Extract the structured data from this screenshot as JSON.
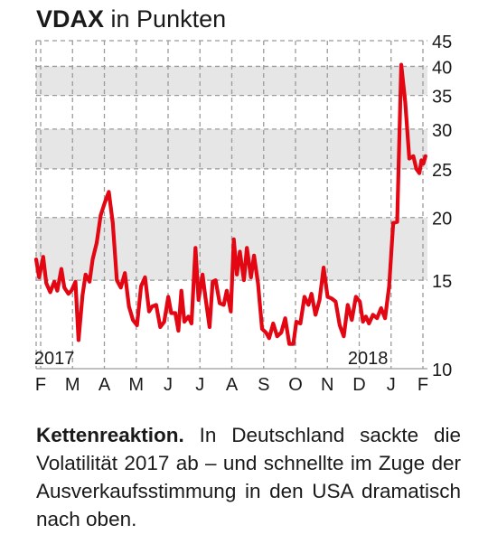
{
  "header": {
    "title_bold": "VDAX",
    "title_rest": "in Punkten"
  },
  "caption": {
    "lead": "Kettenreaktion.",
    "text": "In Deutschland sackte die Volatilität 2017 ab – und schnellte im Zuge der Ausverkaufsstimmung in den USA dramatisch nach oben."
  },
  "colors": {
    "line": "#e30613",
    "band": "#e6e6e6",
    "grid": "#9a9a9a",
    "text": "#1a1a1a"
  },
  "chart_data": {
    "type": "line",
    "title": "VDAX in Punkten",
    "y_scale": "log",
    "ylim": [
      10,
      45
    ],
    "y_ticks": [
      10,
      15,
      20,
      25,
      30,
      35,
      40,
      45
    ],
    "y_tick_labels": [
      "10",
      "15",
      "20",
      "25",
      "30",
      "35",
      "40",
      "45"
    ],
    "shaded_bands": [
      [
        15,
        20
      ],
      [
        25,
        30
      ],
      [
        35,
        40
      ]
    ],
    "grid": true,
    "x_tick_labels": [
      "F",
      "M",
      "A",
      "M",
      "J",
      "J",
      "A",
      "S",
      "O",
      "N",
      "D",
      "J",
      "F"
    ],
    "year_labels": [
      {
        "text": "2017",
        "at": "2017-02-07"
      },
      {
        "text": "2018",
        "at": "2017-12-15"
      }
    ],
    "xlim": [
      "2017-01-20",
      "2018-02-12"
    ],
    "series": [
      {
        "x": [
          "2017-01-20",
          "2017-01-23",
          "2017-01-27",
          "2017-01-30",
          "2017-02-03",
          "2017-02-07",
          "2017-02-10",
          "2017-02-14",
          "2017-02-17",
          "2017-02-21",
          "2017-02-24",
          "2017-02-28",
          "2017-03-03",
          "2017-03-07",
          "2017-03-10",
          "2017-03-14",
          "2017-03-17",
          "2017-03-21",
          "2017-03-25",
          "2017-03-29",
          "2017-04-02",
          "2017-04-06",
          "2017-04-10",
          "2017-04-14",
          "2017-04-18",
          "2017-04-22",
          "2017-04-26",
          "2017-04-30",
          "2017-05-04",
          "2017-05-08",
          "2017-05-12",
          "2017-05-15",
          "2017-05-19",
          "2017-05-23",
          "2017-05-27",
          "2017-05-31",
          "2017-06-03",
          "2017-06-07",
          "2017-06-10",
          "2017-06-13",
          "2017-06-16",
          "2017-06-20",
          "2017-06-23",
          "2017-06-27",
          "2017-06-30",
          "2017-07-04",
          "2017-07-07",
          "2017-07-11",
          "2017-07-14",
          "2017-07-17",
          "2017-07-21",
          "2017-07-25",
          "2017-07-28",
          "2017-08-01",
          "2017-08-04",
          "2017-08-07",
          "2017-08-10",
          "2017-08-14",
          "2017-08-17",
          "2017-08-21",
          "2017-08-24",
          "2017-08-28",
          "2017-09-01",
          "2017-09-05",
          "2017-09-08",
          "2017-09-12",
          "2017-09-16",
          "2017-09-20",
          "2017-09-24",
          "2017-09-28",
          "2017-10-02",
          "2017-10-05",
          "2017-10-09",
          "2017-10-13",
          "2017-10-17",
          "2017-10-20",
          "2017-10-24",
          "2017-10-28",
          "2017-11-01",
          "2017-11-05",
          "2017-11-09",
          "2017-11-13",
          "2017-11-17",
          "2017-11-21",
          "2017-11-25",
          "2017-11-29",
          "2017-12-03",
          "2017-12-07",
          "2017-12-10",
          "2017-12-13",
          "2017-12-16",
          "2017-12-20",
          "2017-12-24",
          "2017-12-28",
          "2018-01-01",
          "2018-01-05",
          "2018-01-09",
          "2018-01-13",
          "2018-01-17",
          "2018-01-21",
          "2018-01-25",
          "2018-01-29",
          "2018-02-01",
          "2018-02-04",
          "2018-02-06",
          "2018-02-08",
          "2018-02-10"
        ],
        "values": [
          16.5,
          15.2,
          16.7,
          14.8,
          14.2,
          14.9,
          14.3,
          15.8,
          14.5,
          14.1,
          14.3,
          14.9,
          11.4,
          14.0,
          15.4,
          14.9,
          16.5,
          17.8,
          20.2,
          21.4,
          22.5,
          19.5,
          15.0,
          14.5,
          15.5,
          13.3,
          12.5,
          12.2,
          14.6,
          15.2,
          13.0,
          13.3,
          13.4,
          12.1,
          12.4,
          13.9,
          12.9,
          12.9,
          11.9,
          14.3,
          12.4,
          12.7,
          12.3,
          17.4,
          13.7,
          15.4,
          13.8,
          12.1,
          14.9,
          15.0,
          13.5,
          13.4,
          14.3,
          13.0,
          18.1,
          15.4,
          17.1,
          15.0,
          17.4,
          15.2,
          16.8,
          14.8,
          12.0,
          11.8,
          11.5,
          12.3,
          11.6,
          11.8,
          12.6,
          11.2,
          11.2,
          12.4,
          12.3,
          13.9,
          13.4,
          14.1,
          12.8,
          13.7,
          15.9,
          13.9,
          13.8,
          13.6,
          12.2,
          11.6,
          13.4,
          12.5,
          13.9,
          13.6,
          12.4,
          12.7,
          12.3,
          12.8,
          12.6,
          13.2,
          12.6,
          14.6,
          19.5,
          19.6,
          40.3,
          34.0,
          26.2,
          26.5,
          25.0,
          24.5,
          26.0,
          25.6,
          26.5
        ]
      }
    ]
  }
}
